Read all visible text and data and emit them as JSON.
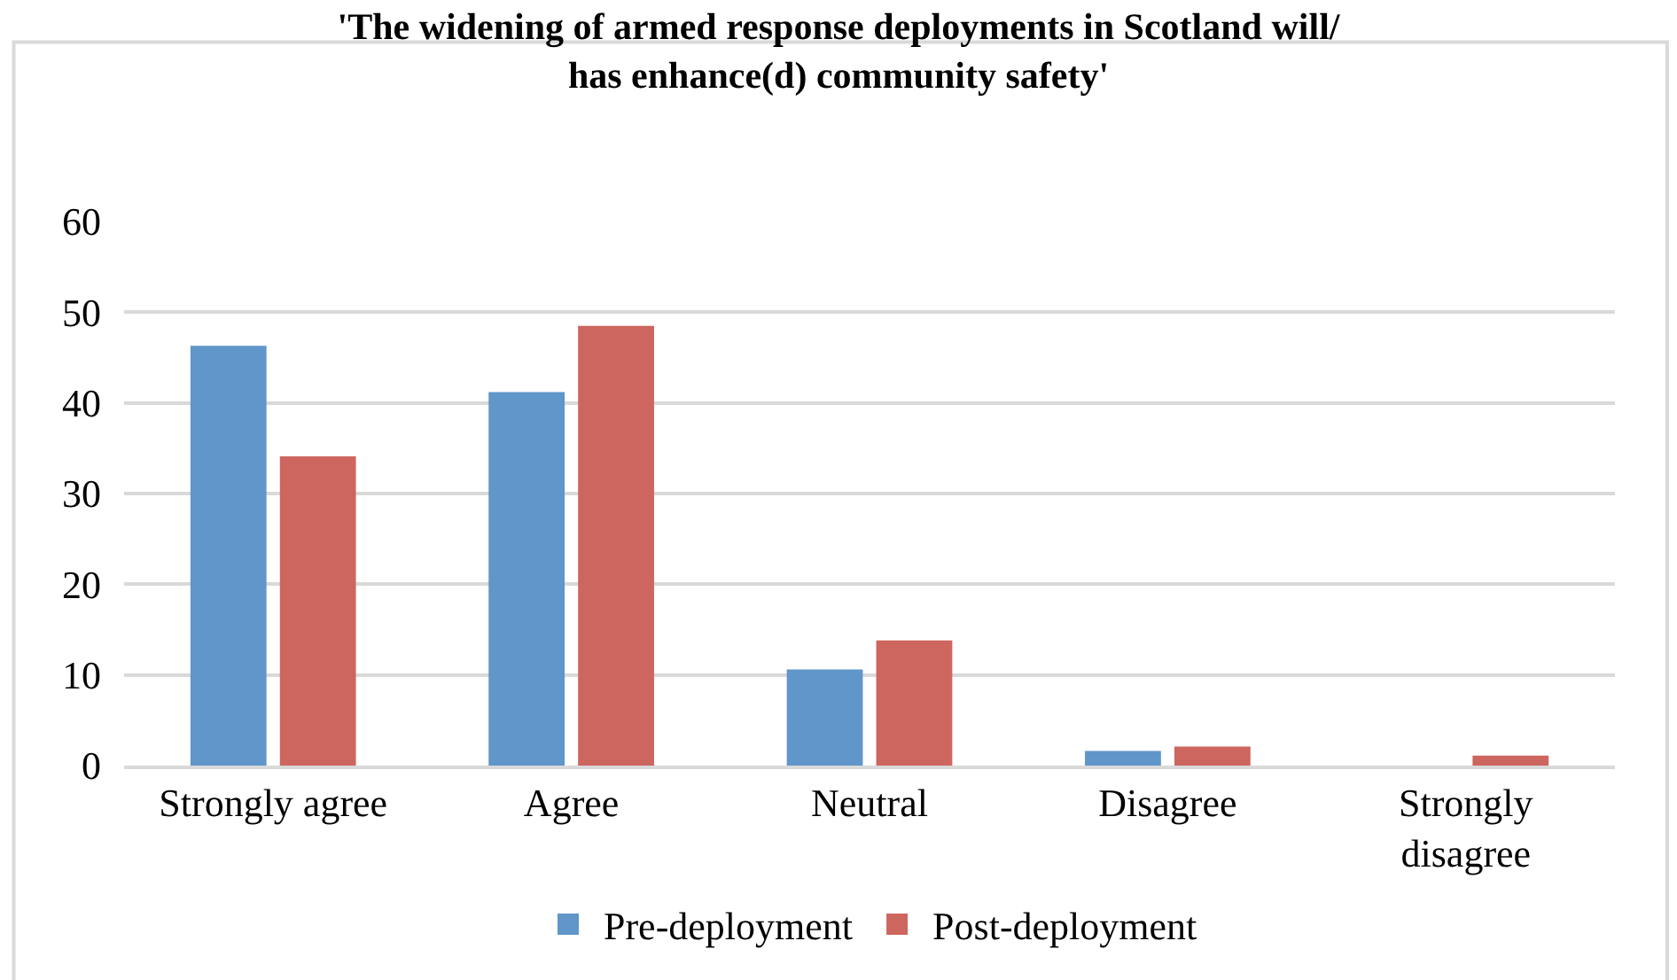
{
  "chart_data": {
    "type": "bar",
    "title": "'The widening of armed response deployments in Scotland will/\nhas enhance(d) community safety'",
    "categories": [
      "Strongly agree",
      "Agree",
      "Neutral",
      "Disagree",
      "Strongly\ndisagree"
    ],
    "series": [
      {
        "name": "Pre-deployment",
        "color": "#6096c9",
        "values": [
          46.3,
          41.2,
          10.6,
          1.6,
          0
        ]
      },
      {
        "name": "Post-deployment",
        "color": "#cd665f",
        "values": [
          34.1,
          48.5,
          13.8,
          2.1,
          1.1
        ]
      }
    ],
    "ylim": [
      0,
      60
    ],
    "yticks": [
      0,
      10,
      20,
      30,
      40,
      50,
      60
    ],
    "grid": "y",
    "legend": "bottom"
  }
}
